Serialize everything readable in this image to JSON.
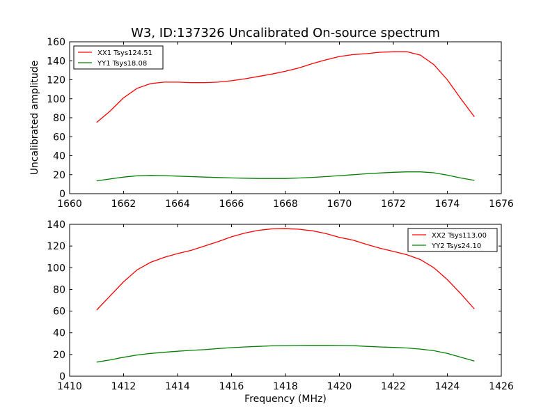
{
  "figure": {
    "title": "W3, ID:137326 Uncalibrated On-source spectrum"
  },
  "chart_data": [
    {
      "type": "line",
      "title": "W3, ID:137326 Uncalibrated On-source spectrum",
      "xlabel": "",
      "ylabel": "Uncalibrated amplitude",
      "xlim": [
        1660,
        1676
      ],
      "ylim": [
        0,
        160
      ],
      "xticks": [
        "1660",
        "1662",
        "1664",
        "1666",
        "1668",
        "1670",
        "1672",
        "1674",
        "1676"
      ],
      "yticks": [
        "0",
        "20",
        "40",
        "60",
        "80",
        "100",
        "120",
        "140",
        "160"
      ],
      "grid": false,
      "legend_position": "top-left",
      "series": [
        {
          "name": "XX1 Tsys124.51",
          "color": "#ff0000",
          "x": [
            1661,
            1661.5,
            1662,
            1662.5,
            1663,
            1663.5,
            1664,
            1664.5,
            1665,
            1665.5,
            1666,
            1666.5,
            1667,
            1667.5,
            1668,
            1668.5,
            1669,
            1669.5,
            1670,
            1670.5,
            1671,
            1671.5,
            1672,
            1672.5,
            1673,
            1673.5,
            1674,
            1674.5,
            1675
          ],
          "values": [
            75,
            87,
            101,
            111,
            116,
            117.5,
            117.5,
            117,
            117,
            117.5,
            119,
            121,
            123.5,
            126,
            129,
            132.5,
            137,
            141,
            144.5,
            146.5,
            147.5,
            149,
            149.5,
            149.5,
            146,
            136,
            120,
            100,
            81
          ]
        },
        {
          "name": "YY1 Tsys18.08",
          "color": "#008000",
          "x": [
            1661,
            1661.5,
            1662,
            1662.5,
            1663,
            1663.5,
            1664,
            1664.5,
            1665,
            1665.5,
            1666,
            1666.5,
            1667,
            1667.5,
            1668,
            1668.5,
            1669,
            1669.5,
            1670,
            1670.5,
            1671,
            1671.5,
            1672,
            1672.5,
            1673,
            1673.5,
            1674,
            1674.5,
            1675
          ],
          "values": [
            13.5,
            15.5,
            17.5,
            18.8,
            19.2,
            19,
            18.5,
            18,
            17.5,
            17,
            16.6,
            16.3,
            16,
            16,
            16,
            16.5,
            17.2,
            18,
            19,
            20,
            21,
            21.8,
            22.5,
            23,
            23,
            22,
            19.5,
            16.5,
            14
          ]
        }
      ]
    },
    {
      "type": "line",
      "title": "",
      "xlabel": "Frequency (MHz)",
      "ylabel": "",
      "xlim": [
        1410,
        1426
      ],
      "ylim": [
        0,
        140
      ],
      "xticks": [
        "1410",
        "1412",
        "1414",
        "1416",
        "1418",
        "1420",
        "1422",
        "1424",
        "1426"
      ],
      "yticks": [
        "0",
        "20",
        "40",
        "60",
        "80",
        "100",
        "120",
        "140"
      ],
      "grid": false,
      "legend_position": "top-right",
      "series": [
        {
          "name": "XX2 Tsys113.00",
          "color": "#ff0000",
          "x": [
            1411,
            1411.5,
            1412,
            1412.5,
            1413,
            1413.5,
            1414,
            1414.5,
            1415,
            1415.5,
            1416,
            1416.5,
            1417,
            1417.5,
            1418,
            1418.5,
            1419,
            1419.5,
            1420,
            1420.5,
            1421,
            1421.5,
            1422,
            1422.5,
            1423,
            1423.5,
            1424,
            1424.5,
            1425
          ],
          "values": [
            61,
            74,
            87,
            98,
            105,
            109.5,
            113,
            116,
            120,
            124,
            128.5,
            132,
            134.5,
            135.8,
            136,
            135.5,
            134,
            131.5,
            128,
            125.5,
            121.5,
            118,
            115,
            112,
            107.5,
            100,
            89,
            76,
            62
          ]
        },
        {
          "name": "YY2 Tsys24.10",
          "color": "#008000",
          "x": [
            1411,
            1411.5,
            1412,
            1412.5,
            1413,
            1413.5,
            1414,
            1414.5,
            1415,
            1415.5,
            1416,
            1416.5,
            1417,
            1417.5,
            1418,
            1418.5,
            1419,
            1419.5,
            1420,
            1420.5,
            1421,
            1421.5,
            1422,
            1422.5,
            1423,
            1423.5,
            1424,
            1424.5,
            1425
          ],
          "values": [
            13,
            15,
            17.5,
            19.5,
            21,
            22,
            23,
            23.8,
            24.5,
            25.5,
            26.3,
            27,
            27.5,
            28,
            28.2,
            28.3,
            28.4,
            28.4,
            28.3,
            28.2,
            27.5,
            27,
            26.5,
            26,
            25,
            23.5,
            21,
            17.5,
            14
          ]
        }
      ]
    }
  ]
}
